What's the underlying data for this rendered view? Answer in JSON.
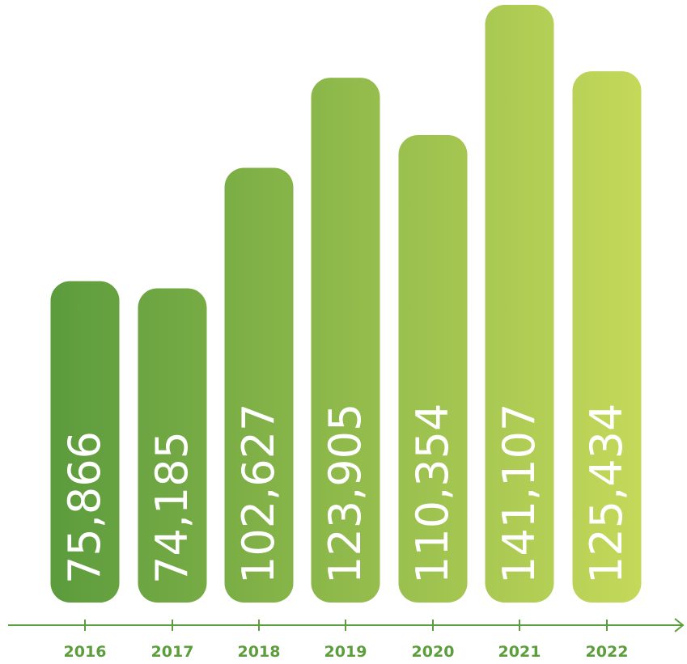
{
  "chart_data": {
    "type": "bar",
    "categories": [
      "2016",
      "2017",
      "2018",
      "2019",
      "2020",
      "2021",
      "2022"
    ],
    "values": [
      75866,
      74185,
      102627,
      123905,
      110354,
      141107,
      125434
    ],
    "value_labels": [
      "75,866",
      "74,185",
      "102,627",
      "123,905",
      "110,354",
      "141,107",
      "125,434"
    ],
    "title": "",
    "xlabel": "",
    "ylabel": "",
    "ylim": [
      0,
      141107
    ],
    "grid": false,
    "colors": {
      "start": "#5b9b3d",
      "end": "#c5d95a",
      "axis": "#5c9e3c",
      "label_text": "#ffffff"
    }
  }
}
